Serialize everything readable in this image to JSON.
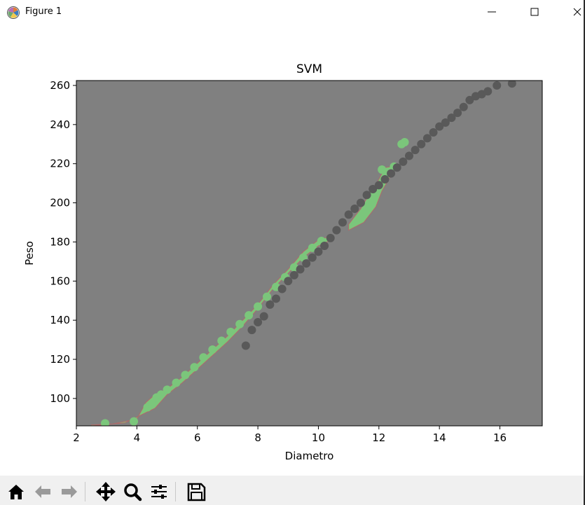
{
  "window": {
    "title": "Figure 1",
    "controls": [
      "minimize",
      "maximize",
      "close"
    ]
  },
  "toolbar": {
    "buttons": [
      {
        "name": "home-button",
        "icon": "home-icon"
      },
      {
        "name": "back-button",
        "icon": "arrow-left-icon"
      },
      {
        "name": "forward-button",
        "icon": "arrow-right-icon"
      },
      {
        "name": "pan-button",
        "icon": "move-arrows-icon"
      },
      {
        "name": "zoom-button",
        "icon": "magnifier-icon"
      },
      {
        "name": "subplots-button",
        "icon": "sliders-icon"
      },
      {
        "name": "save-button",
        "icon": "floppy-disk-icon"
      }
    ]
  },
  "chart_data": {
    "type": "scatter",
    "title": "SVM",
    "xlabel": "Diametro",
    "ylabel": "Peso",
    "xlim": [
      2.0,
      17.4
    ],
    "ylim": [
      86.0,
      262.5
    ],
    "xticks": [
      2,
      4,
      6,
      8,
      10,
      12,
      14,
      16
    ],
    "yticks": [
      100,
      120,
      140,
      160,
      180,
      200,
      220,
      240,
      260
    ],
    "grid": false,
    "legend": "none",
    "colors": {
      "background": "#808080",
      "region": "#7bc67b",
      "region_edge": "#b06a6a",
      "class_a": "#7bc67b",
      "class_b": "#595959"
    },
    "decision_region": {
      "name": "green-region",
      "polygon": [
        [
          2.5,
          86.5
        ],
        [
          3.2,
          87.0
        ],
        [
          4.0,
          89.5
        ],
        [
          4.3,
          98.0
        ],
        [
          4.6,
          102.0
        ],
        [
          5.0,
          105.0
        ],
        [
          5.5,
          111.0
        ],
        [
          6.0,
          118.0
        ],
        [
          6.5,
          125.0
        ],
        [
          7.0,
          132.0
        ],
        [
          7.5,
          140.0
        ],
        [
          8.0,
          148.0
        ],
        [
          8.5,
          158.0
        ],
        [
          9.0,
          166.0
        ],
        [
          9.5,
          175.0
        ],
        [
          10.0,
          181.0
        ],
        [
          10.4,
          183.0
        ],
        [
          10.35,
          180.5
        ],
        [
          10.0,
          178.0
        ],
        [
          9.5,
          172.0
        ],
        [
          9.0,
          164.0
        ],
        [
          8.5,
          156.0
        ],
        [
          8.0,
          146.0
        ],
        [
          7.5,
          137.0
        ],
        [
          7.0,
          129.0
        ],
        [
          6.5,
          122.0
        ],
        [
          6.0,
          115.0
        ],
        [
          5.5,
          108.0
        ],
        [
          5.0,
          102.0
        ],
        [
          4.6,
          95.0
        ],
        [
          4.2,
          92.0
        ],
        [
          3.6,
          87.5
        ],
        [
          2.5,
          86.0
        ]
      ]
    },
    "decision_region_2": {
      "name": "green-region-upper",
      "polygon": [
        [
          11.0,
          186.0
        ],
        [
          11.5,
          190.0
        ],
        [
          11.9,
          198.0
        ],
        [
          12.1,
          206.0
        ],
        [
          12.4,
          214.0
        ],
        [
          12.6,
          219.0
        ],
        [
          12.2,
          218.0
        ],
        [
          12.0,
          212.0
        ],
        [
          11.7,
          205.0
        ],
        [
          11.4,
          197.0
        ],
        [
          11.0,
          189.0
        ]
      ]
    },
    "series": [
      {
        "name": "",
        "color": "#7bc67b",
        "x": [
          2.95,
          3.9,
          4.35,
          4.5,
          4.65,
          4.8,
          5.0,
          5.3,
          5.6,
          5.9,
          6.2,
          6.5,
          6.8,
          7.1,
          7.4,
          7.7,
          8.0,
          8.3,
          8.6,
          8.9,
          9.2,
          9.5,
          9.8,
          10.1,
          12.1,
          12.5,
          12.85,
          12.75
        ],
        "y": [
          87.3,
          88.3,
          95.5,
          97.0,
          100.5,
          102.0,
          104.5,
          108.0,
          112.0,
          116.0,
          121.0,
          125.0,
          129.5,
          134.0,
          138.0,
          142.5,
          147.0,
          152.0,
          157.0,
          162.0,
          167.0,
          172.0,
          177.0,
          180.5,
          217.0,
          218.5,
          231.0,
          230.0
        ]
      },
      {
        "name": "",
        "color": "#595959",
        "x": [
          7.6,
          7.8,
          8.0,
          8.2,
          8.4,
          8.6,
          8.8,
          9.0,
          9.2,
          9.4,
          9.6,
          9.8,
          10.0,
          10.2,
          10.4,
          10.6,
          10.8,
          11.0,
          11.2,
          11.4,
          11.6,
          11.8,
          12.0,
          12.2,
          12.4,
          12.6,
          12.8,
          13.0,
          13.2,
          13.4,
          13.6,
          13.8,
          14.0,
          14.2,
          14.4,
          14.6,
          14.8,
          15.0,
          15.2,
          15.4,
          15.6,
          15.9,
          16.4
        ],
        "y": [
          127.0,
          135.0,
          139.0,
          142.0,
          148.0,
          151.0,
          156.0,
          160.0,
          163.0,
          166.0,
          169.0,
          172.0,
          175.0,
          178.0,
          182.0,
          186.0,
          190.0,
          194.0,
          197.0,
          200.0,
          204.0,
          207.0,
          209.0,
          212.0,
          215.0,
          218.0,
          221.0,
          224.0,
          227.0,
          230.0,
          233.0,
          236.0,
          239.0,
          241.0,
          243.5,
          246.0,
          249.0,
          252.5,
          254.5,
          255.5,
          257.0,
          260.0,
          261.0
        ]
      }
    ]
  }
}
